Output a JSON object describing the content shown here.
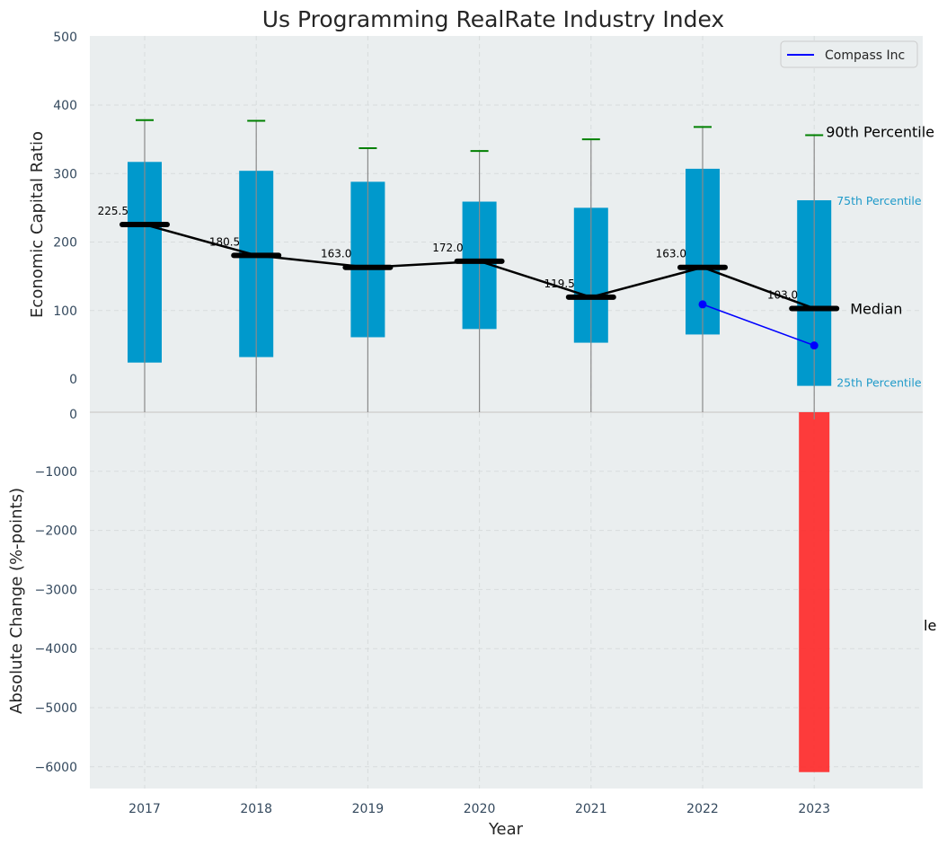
{
  "chart_data": [
    {
      "type": "box-percentile",
      "title": "Us Programming RealRate Industry Index",
      "ylabel": "Economic Capital Ratio",
      "ylim": [
        -50,
        500
      ],
      "yticks": [
        0,
        100,
        200,
        300,
        400,
        500
      ],
      "grid": true,
      "legend_placement": "top-right",
      "categories": [
        "2017",
        "2018",
        "2019",
        "2020",
        "2021",
        "2022",
        "2023"
      ],
      "p90": [
        378,
        377,
        337,
        333,
        350,
        368,
        356
      ],
      "p75": [
        317,
        304,
        288,
        259,
        250,
        307,
        261
      ],
      "median": [
        225.5,
        180.5,
        163.0,
        172.0,
        119.5,
        163.0,
        103.0
      ],
      "p25": [
        24,
        32,
        61,
        73,
        53,
        65,
        -10
      ],
      "median_labels": [
        "225.5",
        "180.5",
        "163.0",
        "172.0",
        "119.5",
        "163.0",
        "103.0"
      ],
      "series": [
        {
          "name": "Compass Inc",
          "x": [
            "2022",
            "2023"
          ],
          "values": [
            109,
            49
          ],
          "color": "#0000ff"
        }
      ],
      "annotations": {
        "p90": "90th Percentile",
        "p75": "75th Percentile",
        "median": "Median",
        "p25": "25th Percentile"
      }
    },
    {
      "type": "bar",
      "xlabel": "Year",
      "ylabel": "Absolute Change (%-points)",
      "ylim": [
        -6400,
        0
      ],
      "yticks": [
        0,
        -1000,
        -2000,
        -3000,
        -4000,
        -5000,
        -6000
      ],
      "grid": true,
      "categories": [
        "2017",
        "2018",
        "2019",
        "2020",
        "2021",
        "2022",
        "2023"
      ],
      "values": [
        null,
        null,
        null,
        null,
        null,
        null,
        -6090
      ],
      "bar_color": "#ff2222",
      "right_edge_text": "le"
    }
  ],
  "colors": {
    "box": "#0099cc",
    "median": "#000000",
    "p90_cap": "#008000",
    "whisker": "#8a8a8a",
    "panel_bg": "#eaeeef",
    "annot_small": "#1f9ac9"
  }
}
